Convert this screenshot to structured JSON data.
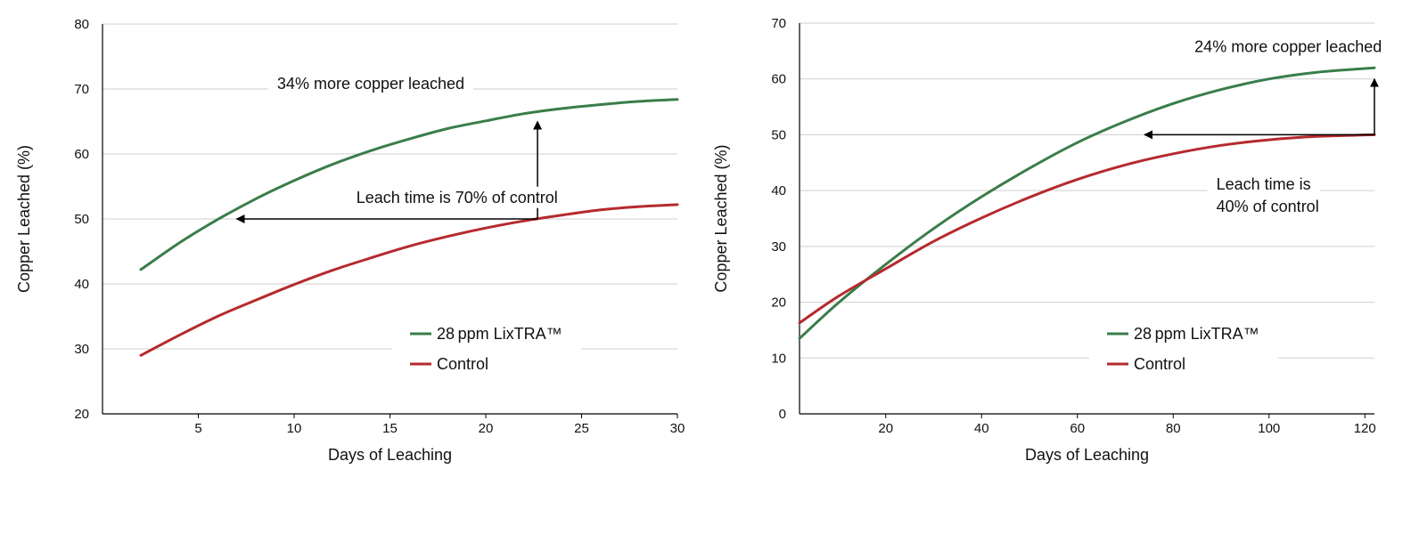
{
  "chart_data": [
    {
      "type": "line",
      "xlabel": "Days of Leaching",
      "ylabel": "Copper Leached (%)",
      "xlim": [
        0,
        30
      ],
      "ylim": [
        20,
        80
      ],
      "xticks": [
        5,
        10,
        15,
        20,
        25,
        30
      ],
      "yticks": [
        20,
        30,
        40,
        50,
        60,
        70,
        80
      ],
      "grid": "horizontal",
      "legend_position": "lower-right",
      "series": [
        {
          "name": "28 ppm LixTRA™",
          "color": "#3a7d4a",
          "x": [
            2,
            4,
            6,
            8,
            10,
            12,
            14,
            16,
            18,
            20,
            22,
            24,
            26,
            28,
            30
          ],
          "y": [
            42.2,
            46.3,
            49.9,
            53.1,
            55.9,
            58.4,
            60.5,
            62.3,
            63.9,
            65.1,
            66.2,
            67.0,
            67.6,
            68.1,
            68.4
          ]
        },
        {
          "name": "Control",
          "color": "#b52a2e",
          "x": [
            2,
            4,
            6,
            8,
            10,
            12,
            14,
            16,
            18,
            20,
            22,
            24,
            26,
            28,
            30
          ],
          "y": [
            29.0,
            32.1,
            35.0,
            37.5,
            39.9,
            42.1,
            44.0,
            45.8,
            47.3,
            48.6,
            49.7,
            50.6,
            51.4,
            51.9,
            52.2
          ]
        }
      ],
      "annotations": [
        {
          "id": "more",
          "text": "34% more copper leached",
          "x": 14.0,
          "y": 70,
          "anchor": "middle"
        },
        {
          "id": "time",
          "text": "Leach time is 70% of control",
          "x": 18.5,
          "y": 52.5,
          "anchor": "middle"
        }
      ],
      "arrows": [
        {
          "from": [
            22.7,
            50
          ],
          "to": [
            22.7,
            65
          ]
        },
        {
          "from": [
            22.7,
            50
          ],
          "to": [
            7,
            50
          ]
        }
      ],
      "arrow_path": [
        [
          22.7,
          50
        ],
        [
          22.7,
          65
        ],
        [
          7,
          50
        ]
      ]
    },
    {
      "type": "line",
      "xlabel": "Days of Leaching",
      "ylabel": "Copper Leached (%)",
      "xlim": [
        2,
        122
      ],
      "ylim": [
        0,
        70
      ],
      "xticks": [
        20,
        40,
        60,
        80,
        100,
        120
      ],
      "yticks": [
        0,
        10,
        20,
        30,
        40,
        50,
        60,
        70
      ],
      "grid": "horizontal",
      "legend_position": "lower-right",
      "series": [
        {
          "name": "28 ppm LixTRA™",
          "color": "#3a7d4a",
          "x": [
            2,
            10,
            20,
            30,
            40,
            50,
            60,
            70,
            80,
            90,
            100,
            110,
            122
          ],
          "y": [
            13.5,
            19.8,
            26.8,
            33.2,
            38.9,
            44.0,
            48.6,
            52.4,
            55.6,
            58.1,
            60.0,
            61.2,
            62.0
          ]
        },
        {
          "name": "Control",
          "color": "#b52a2e",
          "x": [
            2,
            10,
            20,
            30,
            40,
            50,
            60,
            70,
            80,
            90,
            100,
            110,
            122
          ],
          "y": [
            16.3,
            21.0,
            26.0,
            30.9,
            35.1,
            38.8,
            42.0,
            44.6,
            46.6,
            48.1,
            49.1,
            49.7,
            50.0
          ]
        }
      ],
      "annotations": [
        {
          "id": "more",
          "text": "24% more copper leached",
          "x": 104,
          "y": 64.8,
          "anchor": "middle"
        },
        {
          "id": "time1",
          "text": "Leach time is",
          "x": 89,
          "y": 40.2,
          "anchor": "start"
        },
        {
          "id": "time2",
          "text": "40% of control",
          "x": 89,
          "y": 36.2,
          "anchor": "start"
        }
      ],
      "arrows": [
        {
          "from": [
            122,
            50
          ],
          "to": [
            122,
            60
          ]
        },
        {
          "from": [
            122,
            50
          ],
          "to": [
            74,
            50
          ]
        }
      ],
      "arrow_path": [
        [
          122,
          50
        ],
        [
          122,
          60
        ],
        [
          74,
          50
        ]
      ]
    }
  ]
}
